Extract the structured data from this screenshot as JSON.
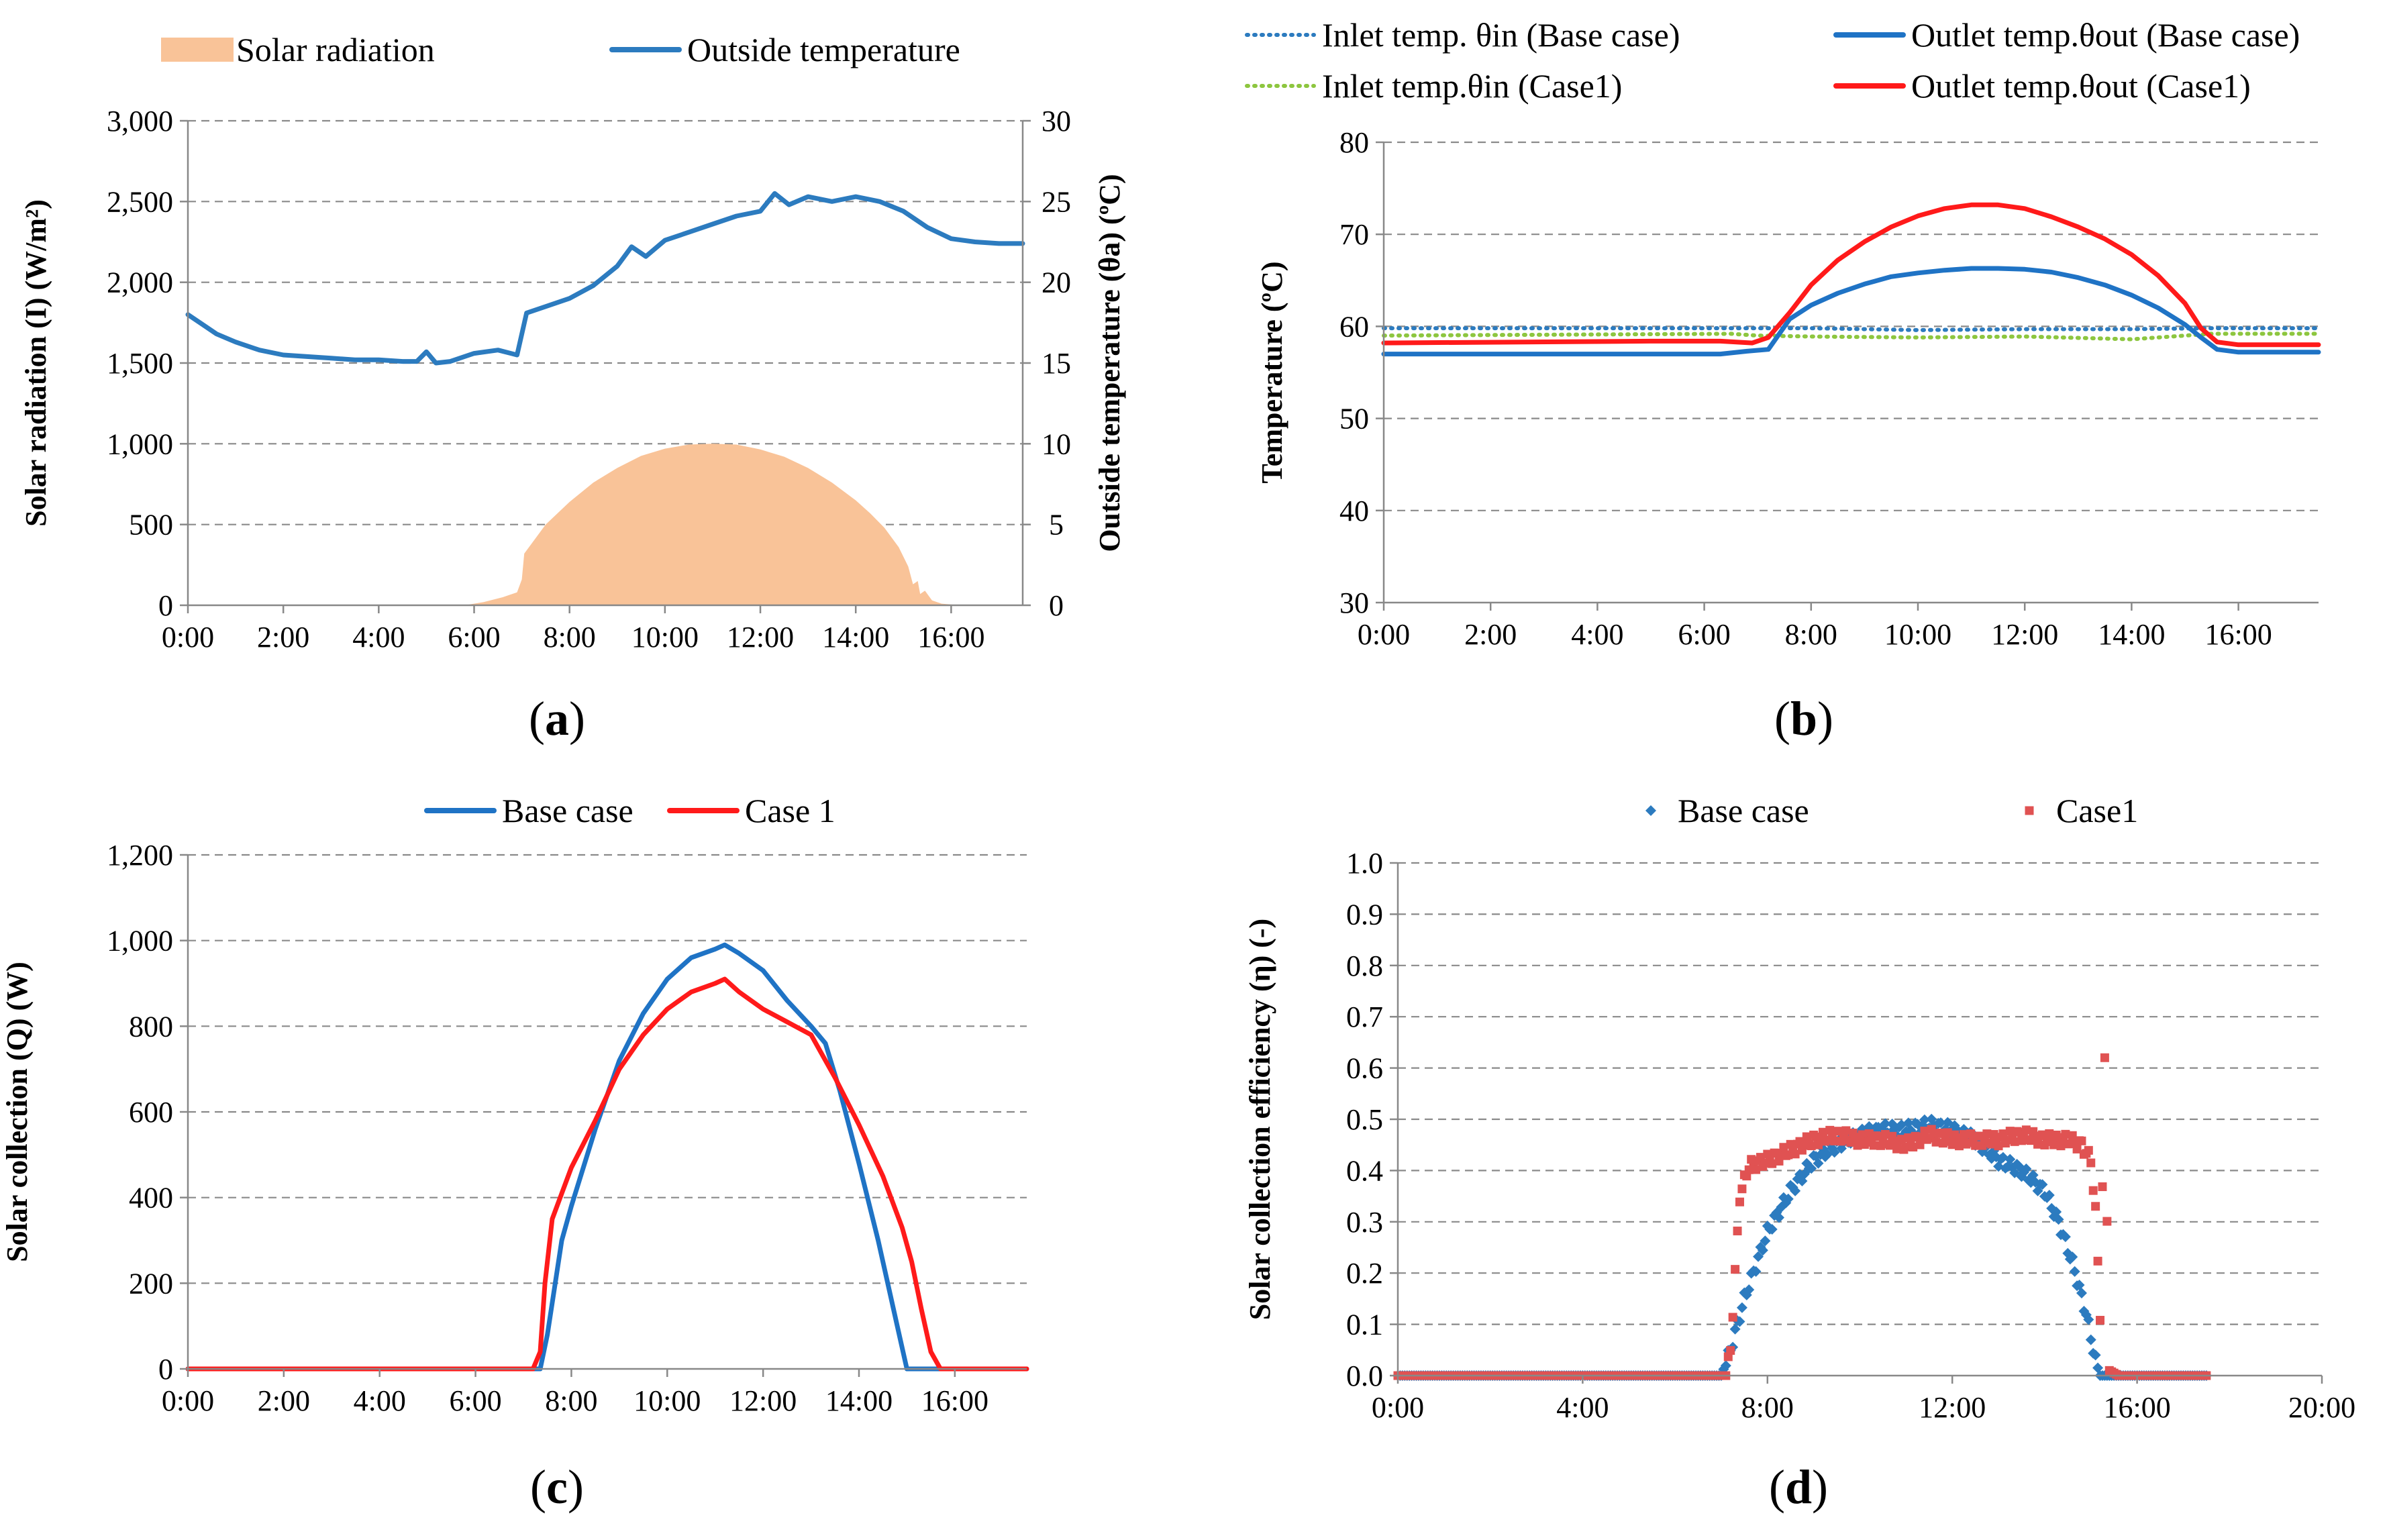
{
  "chart_data": [
    {
      "id": "a",
      "type": "area+line",
      "panel_label": "a",
      "legend": [
        {
          "name": "Solar radiation",
          "style": "area",
          "color": "#f9c398"
        },
        {
          "name": "Outside temperature",
          "style": "line",
          "color": "#2c7bbf"
        }
      ],
      "x_ticks": [
        "0:00",
        "2:00",
        "4:00",
        "6:00",
        "8:00",
        "10:00",
        "12:00",
        "14:00",
        "16:00"
      ],
      "xlim_hours": [
        0,
        17.5
      ],
      "y_left": {
        "label": "Solar radiation (I) (W/m²)",
        "lim": [
          0,
          3000
        ],
        "ticks": [
          "0",
          "500",
          "1,000",
          "1,500",
          "2,000",
          "2,500",
          "3,000"
        ]
      },
      "y_right": {
        "label": "Outside temperature (θa) (ºC)",
        "lim": [
          0,
          30
        ],
        "ticks": [
          "0",
          "5",
          "10",
          "15",
          "20",
          "25",
          "30"
        ]
      },
      "grid": true,
      "series": [
        {
          "name": "Solar radiation",
          "axis": "left",
          "x": [
            0,
            5.8,
            6.2,
            6.6,
            6.9,
            7.0,
            7.05,
            7.5,
            8.0,
            8.5,
            9.0,
            9.5,
            10.0,
            10.5,
            11.0,
            11.5,
            12.0,
            12.5,
            13.0,
            13.5,
            14.0,
            14.3,
            14.6,
            14.9,
            15.1,
            15.2,
            15.3,
            15.35,
            15.45,
            15.6,
            15.8,
            16.2,
            17.5
          ],
          "y": [
            0,
            0,
            20,
            50,
            80,
            160,
            320,
            500,
            640,
            760,
            850,
            925,
            970,
            995,
            1000,
            995,
            965,
            920,
            850,
            760,
            650,
            570,
            480,
            360,
            240,
            130,
            150,
            70,
            90,
            30,
            10,
            0,
            0
          ]
        },
        {
          "name": "Outside temperature",
          "axis": "right",
          "x": [
            0,
            0.3,
            0.6,
            1.0,
            1.5,
            2.0,
            2.5,
            3.0,
            3.5,
            4.0,
            4.5,
            4.8,
            5.0,
            5.2,
            5.5,
            6.0,
            6.5,
            6.9,
            7.1,
            7.5,
            8.0,
            8.5,
            9.0,
            9.3,
            9.6,
            10.0,
            10.5,
            11.0,
            11.5,
            12.0,
            12.3,
            12.6,
            13.0,
            13.5,
            14.0,
            14.5,
            15.0,
            15.5,
            16.0,
            16.5,
            17.0,
            17.5
          ],
          "y": [
            18,
            17.4,
            16.8,
            16.3,
            15.8,
            15.5,
            15.4,
            15.3,
            15.2,
            15.2,
            15.1,
            15.1,
            15.7,
            15.0,
            15.1,
            15.6,
            15.8,
            15.5,
            18.1,
            18.5,
            19.0,
            19.8,
            21.0,
            22.2,
            21.6,
            22.6,
            23.1,
            23.6,
            24.1,
            24.4,
            25.5,
            24.8,
            25.3,
            25.0,
            25.3,
            25.0,
            24.4,
            23.4,
            22.7,
            22.5,
            22.4,
            22.4
          ]
        }
      ]
    },
    {
      "id": "b",
      "type": "line",
      "panel_label": "b",
      "legend": [
        {
          "name": "Inlet temp. θin (Base case)",
          "style": "dotted",
          "color": "#2c7bbf"
        },
        {
          "name": "Outlet temp.θout (Base case)",
          "style": "solid",
          "color": "#1f73c5"
        },
        {
          "name": "Inlet temp.θin (Case1)",
          "style": "dotted",
          "color": "#8dc63f"
        },
        {
          "name": "Outlet temp.θout (Case1)",
          "style": "solid",
          "color": "#ff1a1a"
        }
      ],
      "x_ticks": [
        "0:00",
        "2:00",
        "4:00",
        "6:00",
        "8:00",
        "10:00",
        "12:00",
        "14:00",
        "16:00"
      ],
      "xlim_hours": [
        0,
        17.5
      ],
      "y_left": {
        "label": "Temperature (ºC)",
        "lim": [
          30,
          80
        ],
        "ticks": [
          "30",
          "40",
          "50",
          "60",
          "70",
          "80"
        ]
      },
      "grid": true,
      "series": [
        {
          "name": "Inlet temp. θin (Base case)",
          "x": [
            0,
            7,
            8,
            10,
            12,
            14,
            15.5,
            17.5
          ],
          "y": [
            59.8,
            59.8,
            59.8,
            59.6,
            59.7,
            59.7,
            59.8,
            59.8
          ]
        },
        {
          "name": "Inlet temp.θin (Case1)",
          "x": [
            0,
            6.5,
            7,
            8,
            10,
            12,
            14,
            15.5,
            17.5
          ],
          "y": [
            59.0,
            59.2,
            59.0,
            58.9,
            58.8,
            58.9,
            58.6,
            59.2,
            59.2
          ]
        },
        {
          "name": "Outlet temp.θout (Base case)",
          "x": [
            0,
            5,
            6.3,
            6.8,
            7.2,
            7.6,
            8,
            8.5,
            9,
            9.5,
            10,
            10.5,
            11,
            11.5,
            12,
            12.5,
            13,
            13.5,
            14,
            14.5,
            15,
            15.3,
            15.6,
            16,
            17.5
          ],
          "y": [
            57,
            57,
            57,
            57.3,
            57.5,
            60.8,
            62.3,
            63.6,
            64.6,
            65.4,
            65.8,
            66.1,
            66.3,
            66.3,
            66.2,
            65.9,
            65.3,
            64.5,
            63.4,
            62.0,
            60.2,
            58.8,
            57.5,
            57.2,
            57.2
          ]
        },
        {
          "name": "Outlet temp.θout (Case1)",
          "x": [
            0,
            5,
            6.3,
            6.9,
            7.2,
            7.6,
            8,
            8.5,
            9,
            9.5,
            10,
            10.5,
            11,
            11.5,
            12,
            12.5,
            13,
            13.5,
            14,
            14.5,
            15,
            15.3,
            15.6,
            16,
            17.5
          ],
          "y": [
            58.2,
            58.4,
            58.4,
            58.2,
            58.8,
            61.5,
            64.5,
            67.2,
            69.2,
            70.8,
            72.0,
            72.8,
            73.2,
            73.2,
            72.8,
            71.9,
            70.8,
            69.5,
            67.8,
            65.5,
            62.5,
            59.8,
            58.3,
            58.0,
            58.0
          ]
        }
      ]
    },
    {
      "id": "c",
      "type": "line",
      "panel_label": "c",
      "legend": [
        {
          "name": "Base case",
          "style": "solid",
          "color": "#1f73c5"
        },
        {
          "name": "Case 1",
          "style": "solid",
          "color": "#ff1a1a"
        }
      ],
      "x_ticks": [
        "0:00",
        "2:00",
        "4:00",
        "6:00",
        "8:00",
        "10:00",
        "12:00",
        "14:00",
        "16:00"
      ],
      "xlim_hours": [
        0,
        17.5
      ],
      "y_left": {
        "label": "Solar collection (Q) (W)",
        "lim": [
          0,
          1200
        ],
        "ticks": [
          "0",
          "200",
          "400",
          "600",
          "800",
          "1,000",
          "1,200"
        ]
      },
      "grid": true,
      "series": [
        {
          "name": "Base case",
          "x": [
            0,
            7.1,
            7.35,
            7.5,
            7.8,
            8.0,
            8.5,
            9.0,
            9.5,
            10.0,
            10.5,
            11.0,
            11.2,
            11.5,
            12.0,
            12.5,
            13.0,
            13.3,
            13.6,
            14.0,
            14.4,
            14.8,
            15.0,
            15.1,
            17.5
          ],
          "y": [
            0,
            0,
            0,
            80,
            300,
            380,
            560,
            720,
            830,
            910,
            960,
            980,
            990,
            970,
            930,
            860,
            800,
            760,
            650,
            480,
            300,
            100,
            0,
            0,
            0
          ]
        },
        {
          "name": "Case 1",
          "x": [
            0,
            7.2,
            7.35,
            7.45,
            7.6,
            8.0,
            8.5,
            9.0,
            9.5,
            10.0,
            10.5,
            11.0,
            11.2,
            11.5,
            12.0,
            12.5,
            13.0,
            13.5,
            14.0,
            14.5,
            14.9,
            15.1,
            15.3,
            15.5,
            15.7,
            17.5
          ],
          "y": [
            0,
            0,
            40,
            200,
            350,
            470,
            580,
            700,
            780,
            840,
            880,
            900,
            910,
            880,
            840,
            810,
            780,
            680,
            570,
            450,
            330,
            250,
            140,
            40,
            0,
            0
          ]
        }
      ]
    },
    {
      "id": "d",
      "type": "scatter",
      "panel_label": "d",
      "legend": [
        {
          "name": "Base case",
          "marker": "diamond",
          "color": "#2c7bbf"
        },
        {
          "name": "Case1",
          "marker": "square",
          "color": "#e05252"
        }
      ],
      "x_ticks": [
        "0:00",
        "4:00",
        "8:00",
        "12:00",
        "16:00",
        "20:00"
      ],
      "xlim_hours": [
        0,
        20
      ],
      "y_left": {
        "label": "Solar collection efficiency (η) (-)",
        "lim": [
          0,
          1.0
        ],
        "ticks": [
          "0.0",
          "0.1",
          "0.2",
          "0.3",
          "0.4",
          "0.5",
          "0.6",
          "0.7",
          "0.8",
          "0.9",
          "1.0"
        ]
      },
      "grid": true,
      "series": [
        {
          "name": "Base case",
          "x": [
            0,
            7.0,
            7.2,
            7.5,
            8.0,
            8.5,
            9.0,
            9.5,
            10.0,
            10.5,
            11.0,
            11.5,
            12.0,
            12.5,
            13.0,
            13.5,
            14.0,
            14.3,
            14.6,
            14.9,
            15.1,
            15.2,
            17.5
          ],
          "y": [
            0,
            0,
            0.05,
            0.15,
            0.28,
            0.36,
            0.42,
            0.45,
            0.47,
            0.48,
            0.48,
            0.49,
            0.48,
            0.46,
            0.42,
            0.4,
            0.36,
            0.3,
            0.22,
            0.12,
            0.03,
            0,
            0
          ]
        },
        {
          "name": "Case1",
          "x": [
            0,
            7.1,
            7.2,
            7.4,
            7.6,
            8.0,
            8.5,
            9.0,
            9.5,
            10.0,
            10.5,
            11.0,
            11.5,
            12.0,
            12.5,
            13.0,
            13.5,
            14.0,
            14.5,
            14.8,
            15.0,
            15.1,
            15.2,
            15.3,
            15.4,
            15.6,
            17.5
          ],
          "y": [
            0,
            0,
            0.05,
            0.35,
            0.41,
            0.42,
            0.44,
            0.46,
            0.47,
            0.46,
            0.46,
            0.45,
            0.47,
            0.46,
            0.46,
            0.46,
            0.47,
            0.46,
            0.46,
            0.45,
            0.42,
            0.32,
            0.12,
            0.61,
            0.01,
            0,
            0
          ]
        }
      ]
    }
  ]
}
